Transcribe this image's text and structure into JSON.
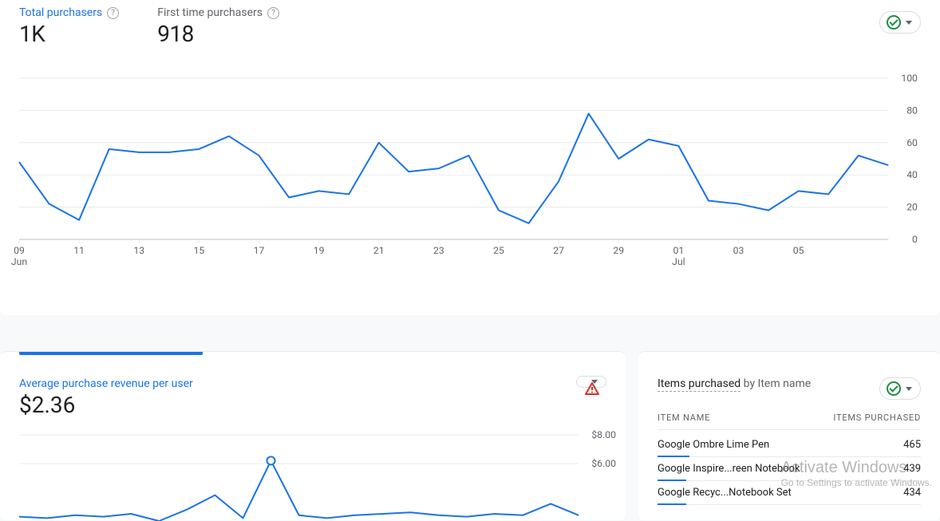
{
  "colors": {
    "primary": "#1a73e8",
    "text": "#202124",
    "muted": "#5f6368",
    "grid": "#e8eaed",
    "baseline": "#bdc1c6",
    "success": "#1e8e3e",
    "warning": "#d93025",
    "background": "#f8f9fa"
  },
  "top_card": {
    "metrics": [
      {
        "label": "Total purchasers",
        "value": "1K",
        "active": true
      },
      {
        "label": "First time purchasers",
        "value": "918",
        "active": false
      }
    ],
    "chart": {
      "type": "line",
      "series_color": "#1a73e8",
      "line_width": 2,
      "ylim": [
        0,
        100
      ],
      "ytick_step": 20,
      "yticks": [
        0,
        20,
        40,
        60,
        80,
        100
      ],
      "grid_color": "#e8eaed",
      "baseline_color": "#bdc1c6",
      "x_labels": [
        "09",
        "11",
        "13",
        "15",
        "17",
        "19",
        "21",
        "23",
        "25",
        "27",
        "29",
        "01",
        "03",
        "05"
      ],
      "x_sub_labels": {
        "0": "Jun",
        "11": "Jul"
      },
      "values": [
        48,
        22,
        12,
        56,
        54,
        54,
        56,
        64,
        52,
        26,
        30,
        28,
        60,
        42,
        44,
        52,
        18,
        10,
        36,
        78,
        50,
        62,
        58,
        24,
        22,
        18,
        30,
        28,
        52,
        46
      ]
    }
  },
  "bottom_left": {
    "label": "Average purchase revenue per user",
    "value": "$2.36",
    "chart": {
      "type": "line",
      "series_color": "#1a73e8",
      "line_width": 2,
      "marker_color": "#ffffff",
      "marker_border": "#1a73e8",
      "yticks": [
        "$8.00",
        "$6.00"
      ],
      "ytick_values": [
        8,
        6
      ],
      "ylim": [
        2,
        8
      ],
      "values": [
        2.3,
        2.2,
        2.4,
        2.3,
        2.5,
        2.0,
        2.8,
        3.8,
        2.2,
        6.2,
        2.4,
        2.2,
        2.4,
        2.5,
        2.6,
        2.4,
        2.3,
        2.5,
        2.4,
        3.2,
        2.4
      ]
    }
  },
  "bottom_right": {
    "title_bold": "Items purchased",
    "title_rest": " by Item name",
    "columns": [
      "ITEM NAME",
      "ITEMS PURCHASED"
    ],
    "rows": [
      {
        "name": "Google Ombre Lime Pen",
        "value": 465,
        "bar_pct": 12
      },
      {
        "name": "Google Inspire...reen Notebook",
        "value": 439,
        "bar_pct": 11
      },
      {
        "name": "Google Recyc...Notebook Set",
        "value": 434,
        "bar_pct": 11
      }
    ]
  },
  "watermark": {
    "line1": "Activate Windows",
    "line2": "Go to Settings to activate Windows."
  }
}
